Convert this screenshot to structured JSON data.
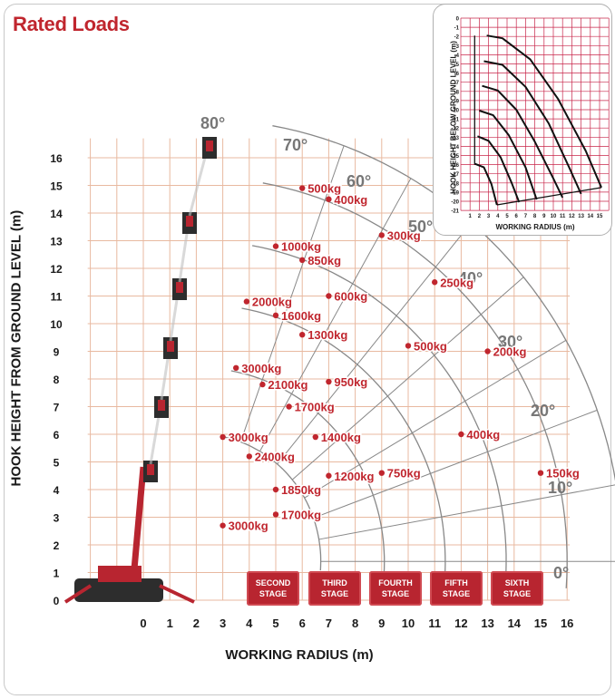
{
  "title": "Rated Loads",
  "colors": {
    "accent": "#c0262e",
    "grid": "#e8b9a0",
    "arc": "#888888",
    "stage_bg": "#b82530",
    "inset_grid": "#c8264a"
  },
  "stages": [
    "SECOND STAGE",
    "THIRD STAGE",
    "FOURTH STAGE",
    "FIFTH STAGE",
    "SIXTH STAGE"
  ],
  "icons": [
    "crane-icon"
  ],
  "chart_data": [
    {
      "type": "scatter",
      "title": "",
      "xlabel": "WORKING RADIUS (m)",
      "ylabel": "HOOK HEIGHT FROM GROUND LEVEL (m)",
      "xlim": [
        0,
        16
      ],
      "ylim": [
        0,
        16
      ],
      "x_ticks": [
        "0",
        "1",
        "2",
        "3",
        "4",
        "5",
        "6",
        "7",
        "8",
        "9",
        "10",
        "11",
        "12",
        "13",
        "14",
        "15",
        "16"
      ],
      "y_ticks": [
        "0",
        "1",
        "2",
        "3",
        "4",
        "5",
        "6",
        "7",
        "8",
        "9",
        "10",
        "11",
        "12",
        "13",
        "14",
        "15",
        "16"
      ],
      "angle_labels": [
        "80°",
        "70°",
        "60°",
        "50°",
        "40°",
        "30°",
        "20°",
        "10°",
        "0°"
      ],
      "grid": true,
      "series": [
        {
          "name": "SECOND STAGE",
          "points": [
            {
              "x": 3.0,
              "y": 2.7,
              "label": "3000kg"
            },
            {
              "x": 3.0,
              "y": 5.9,
              "label": "3000kg"
            },
            {
              "x": 3.5,
              "y": 8.4,
              "label": "3000kg"
            },
            {
              "x": 3.9,
              "y": 10.8,
              "label": "2000kg"
            }
          ]
        },
        {
          "name": "THIRD STAGE",
          "points": [
            {
              "x": 5.0,
              "y": 3.1,
              "label": "1700kg"
            },
            {
              "x": 4.0,
              "y": 5.2,
              "label": "2400kg"
            },
            {
              "x": 4.5,
              "y": 7.8,
              "label": "2100kg"
            },
            {
              "x": 5.0,
              "y": 10.3,
              "label": "1600kg"
            },
            {
              "x": 5.0,
              "y": 12.8,
              "label": "1000kg"
            }
          ]
        },
        {
          "name": "FOURTH STAGE",
          "points": [
            {
              "x": 5.0,
              "y": 4.0,
              "label": "1850kg"
            },
            {
              "x": 5.5,
              "y": 7.0,
              "label": "1700kg"
            },
            {
              "x": 6.0,
              "y": 9.6,
              "label": "1300kg"
            },
            {
              "x": 6.0,
              "y": 12.3,
              "label": "850kg"
            },
            {
              "x": 6.0,
              "y": 14.9,
              "label": "500kg"
            }
          ]
        },
        {
          "name": "FIFTH STAGE",
          "points": [
            {
              "x": 7.0,
              "y": 4.5,
              "label": "1200kg"
            },
            {
              "x": 6.5,
              "y": 5.9,
              "label": "1400kg"
            },
            {
              "x": 7.0,
              "y": 7.9,
              "label": "950kg"
            },
            {
              "x": 7.0,
              "y": 11.0,
              "label": "600kg"
            },
            {
              "x": 7.0,
              "y": 14.5,
              "label": "400kg"
            }
          ]
        },
        {
          "name": "SIXTH STAGE",
          "points": [
            {
              "x": 9.0,
              "y": 4.6,
              "label": "750kg"
            },
            {
              "x": 12.0,
              "y": 6.0,
              "label": "400kg"
            },
            {
              "x": 15.0,
              "y": 4.6,
              "label": "150kg"
            },
            {
              "x": 13.0,
              "y": 9.0,
              "label": "200kg"
            },
            {
              "x": 10.0,
              "y": 9.2,
              "label": "500kg"
            },
            {
              "x": 11.0,
              "y": 11.5,
              "label": "250kg"
            },
            {
              "x": 9.0,
              "y": 13.2,
              "label": "300kg"
            }
          ]
        }
      ]
    },
    {
      "type": "line",
      "title": "",
      "xlabel": "WORKING RADIUS (m)",
      "ylabel": "HOOK HEIGHT BELOW GROUND LEVEL (m)",
      "xlim": [
        0,
        16
      ],
      "ylim": [
        -21,
        0
      ],
      "x_ticks": [
        "1",
        "2",
        "3",
        "4",
        "5",
        "6",
        "7",
        "8",
        "9",
        "10",
        "11",
        "12",
        "13",
        "14",
        "15"
      ],
      "y_ticks": [
        "0",
        "-1",
        "-2",
        "-3",
        "-4",
        "-5",
        "-6",
        "-7",
        "-8",
        "-9",
        "-10",
        "-11",
        "-12",
        "-13",
        "-14",
        "-15",
        "-16",
        "-17",
        "-18",
        "-19",
        "-20",
        "-21"
      ],
      "grid": true,
      "series": [
        {
          "x": [
            2.8,
            4.5,
            7.5,
            10.5,
            13.5,
            15.2
          ],
          "y": [
            -1.9,
            -2.2,
            -4.5,
            -8.8,
            -14.5,
            -18.5
          ]
        },
        {
          "x": [
            2.5,
            4.5,
            7.0,
            9.5,
            11.8,
            13.0
          ],
          "y": [
            -4.7,
            -5.1,
            -7.5,
            -11.5,
            -16.5,
            -19.2
          ]
        },
        {
          "x": [
            2.3,
            4.0,
            6.0,
            8.0,
            10.0,
            11.0
          ],
          "y": [
            -7.4,
            -7.9,
            -10.0,
            -13.5,
            -17.5,
            -19.6
          ]
        },
        {
          "x": [
            2.0,
            3.5,
            5.2,
            7.0,
            8.2
          ],
          "y": [
            -10.1,
            -10.6,
            -12.8,
            -16.3,
            -19.8
          ]
        },
        {
          "x": [
            1.8,
            3.0,
            4.3,
            5.5,
            6.3
          ],
          "y": [
            -12.9,
            -13.4,
            -15.2,
            -18.0,
            -20.1
          ]
        },
        {
          "x": [
            1.5,
            2.5,
            3.3,
            3.9
          ],
          "y": [
            -15.9,
            -16.3,
            -18.1,
            -20.4
          ]
        }
      ]
    }
  ],
  "axis_labels": {
    "main_y": "HOOK HEIGHT FROM GROUND LEVEL (m)",
    "main_x": "WORKING RADIUS (m)",
    "inset_y": "HOOK HEIGHT BELOW GROUND LEVEL (m)",
    "inset_x": "WORKING RADIUS (m)"
  }
}
